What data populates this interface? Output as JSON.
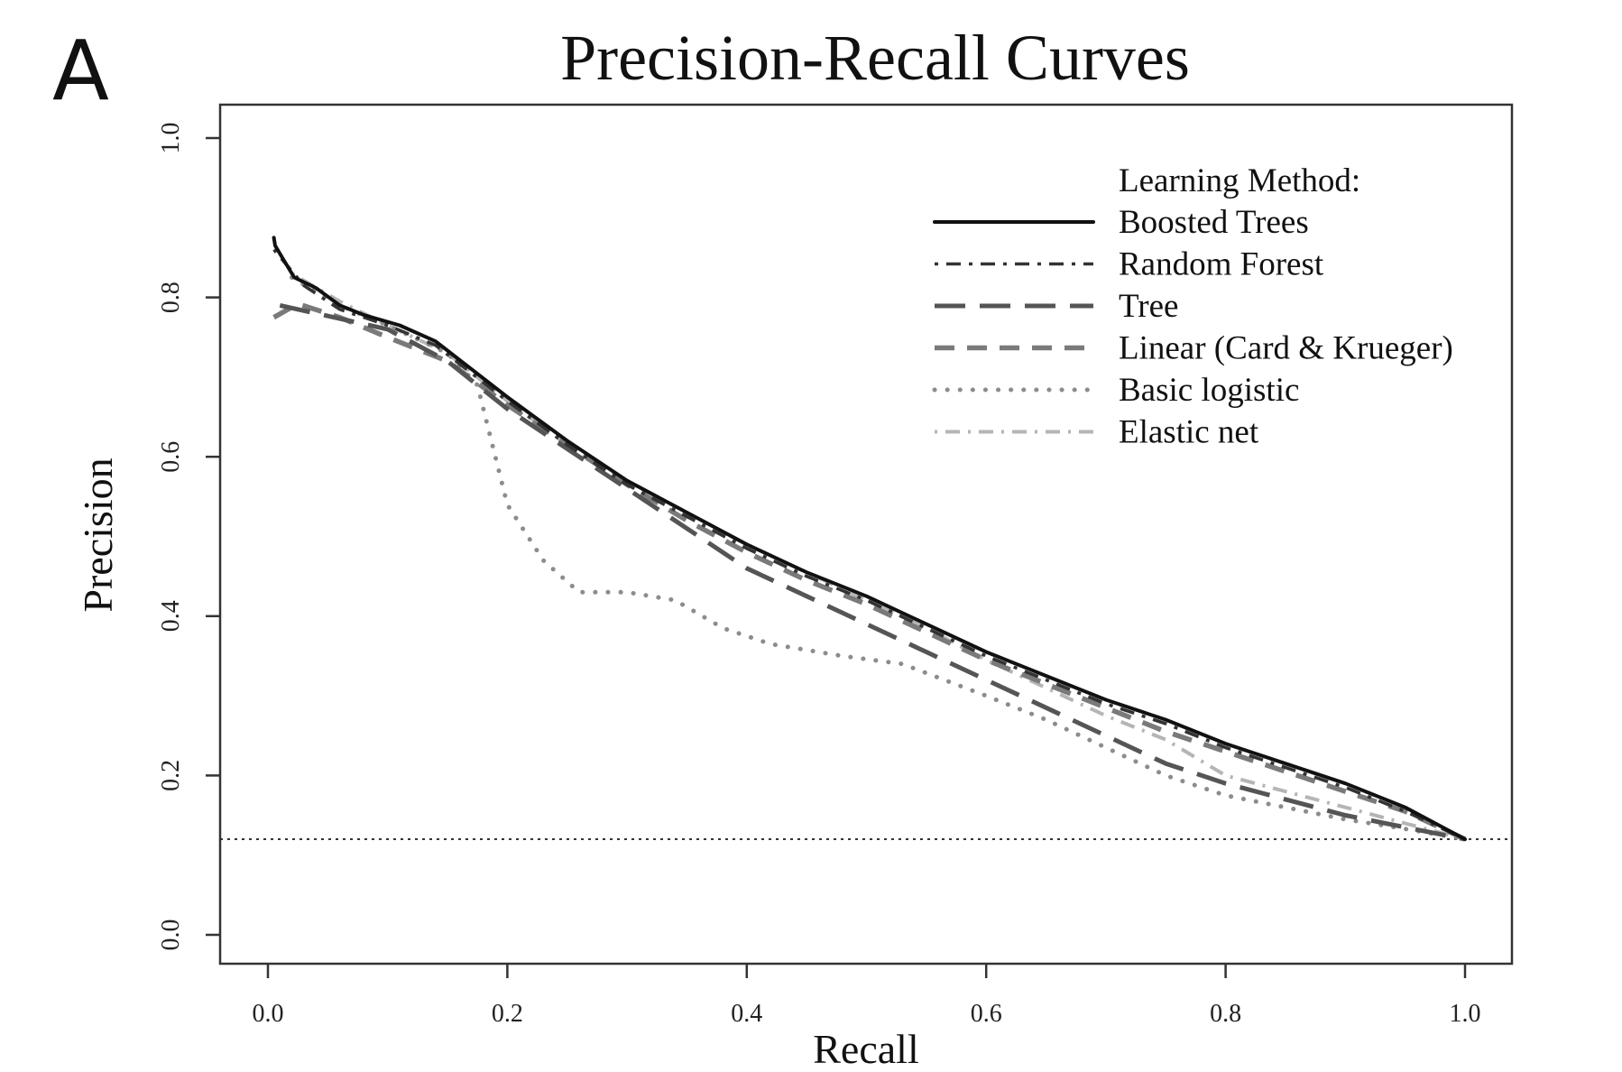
{
  "panel_label": "A",
  "chart_data": {
    "type": "line",
    "title": "Precision-Recall Curves",
    "xlabel": "Recall",
    "ylabel": "Precision",
    "xlim": [
      0.0,
      1.0
    ],
    "ylim": [
      0.0,
      1.0
    ],
    "xticks": [
      "0.0",
      "0.2",
      "0.4",
      "0.6",
      "0.8",
      "1.0"
    ],
    "yticks": [
      "0.0",
      "0.2",
      "0.4",
      "0.6",
      "0.8",
      "1.0"
    ],
    "grid": false,
    "legend_title": "Learning Method:",
    "legend_position": "top-right",
    "baseline": {
      "y": 0.12,
      "style": "dotted",
      "color": "#333333"
    },
    "series": [
      {
        "name": "Boosted Trees",
        "color": "#111111",
        "dash": "solid",
        "points": [
          [
            0.005,
            0.875
          ],
          [
            0.006,
            0.865
          ],
          [
            0.012,
            0.85
          ],
          [
            0.022,
            0.825
          ],
          [
            0.04,
            0.812
          ],
          [
            0.06,
            0.79
          ],
          [
            0.08,
            0.778
          ],
          [
            0.11,
            0.765
          ],
          [
            0.14,
            0.745
          ],
          [
            0.17,
            0.71
          ],
          [
            0.2,
            0.675
          ],
          [
            0.25,
            0.62
          ],
          [
            0.3,
            0.57
          ],
          [
            0.35,
            0.53
          ],
          [
            0.4,
            0.49
          ],
          [
            0.45,
            0.455
          ],
          [
            0.5,
            0.425
          ],
          [
            0.55,
            0.39
          ],
          [
            0.6,
            0.355
          ],
          [
            0.65,
            0.325
          ],
          [
            0.7,
            0.295
          ],
          [
            0.75,
            0.27
          ],
          [
            0.8,
            0.24
          ],
          [
            0.85,
            0.215
          ],
          [
            0.9,
            0.19
          ],
          [
            0.95,
            0.16
          ],
          [
            1.0,
            0.12
          ]
        ]
      },
      {
        "name": "Random Forest",
        "color": "#333333",
        "dash": "dot-dash",
        "points": [
          [
            0.005,
            0.86
          ],
          [
            0.03,
            0.815
          ],
          [
            0.06,
            0.785
          ],
          [
            0.1,
            0.765
          ],
          [
            0.14,
            0.74
          ],
          [
            0.17,
            0.705
          ],
          [
            0.2,
            0.67
          ],
          [
            0.25,
            0.615
          ],
          [
            0.3,
            0.565
          ],
          [
            0.35,
            0.525
          ],
          [
            0.4,
            0.485
          ],
          [
            0.45,
            0.45
          ],
          [
            0.5,
            0.42
          ],
          [
            0.55,
            0.385
          ],
          [
            0.6,
            0.35
          ],
          [
            0.65,
            0.32
          ],
          [
            0.7,
            0.29
          ],
          [
            0.75,
            0.265
          ],
          [
            0.8,
            0.235
          ],
          [
            0.85,
            0.21
          ],
          [
            0.9,
            0.185
          ],
          [
            0.95,
            0.155
          ],
          [
            1.0,
            0.12
          ]
        ]
      },
      {
        "name": "Tree",
        "color": "#555555",
        "dash": "long-dash",
        "points": [
          [
            0.01,
            0.79
          ],
          [
            0.1,
            0.76
          ],
          [
            0.15,
            0.72
          ],
          [
            0.2,
            0.66
          ],
          [
            0.25,
            0.61
          ],
          [
            0.3,
            0.56
          ],
          [
            0.35,
            0.51
          ],
          [
            0.4,
            0.46
          ],
          [
            0.45,
            0.425
          ],
          [
            0.5,
            0.39
          ],
          [
            0.55,
            0.355
          ],
          [
            0.6,
            0.32
          ],
          [
            0.65,
            0.285
          ],
          [
            0.7,
            0.25
          ],
          [
            0.75,
            0.215
          ],
          [
            0.8,
            0.19
          ],
          [
            0.85,
            0.17
          ],
          [
            0.9,
            0.15
          ],
          [
            0.95,
            0.135
          ],
          [
            1.0,
            0.12
          ]
        ]
      },
      {
        "name": "Linear (Card & Krueger)",
        "color": "#7a7a7a",
        "dash": "dash",
        "points": [
          [
            0.005,
            0.775
          ],
          [
            0.025,
            0.792
          ],
          [
            0.06,
            0.775
          ],
          [
            0.1,
            0.75
          ],
          [
            0.15,
            0.72
          ],
          [
            0.2,
            0.665
          ],
          [
            0.25,
            0.615
          ],
          [
            0.3,
            0.565
          ],
          [
            0.35,
            0.52
          ],
          [
            0.4,
            0.48
          ],
          [
            0.45,
            0.445
          ],
          [
            0.5,
            0.415
          ],
          [
            0.55,
            0.38
          ],
          [
            0.6,
            0.345
          ],
          [
            0.65,
            0.315
          ],
          [
            0.7,
            0.285
          ],
          [
            0.75,
            0.255
          ],
          [
            0.8,
            0.23
          ],
          [
            0.85,
            0.205
          ],
          [
            0.9,
            0.18
          ],
          [
            0.95,
            0.155
          ],
          [
            1.0,
            0.12
          ]
        ]
      },
      {
        "name": "Basic logistic",
        "color": "#8c8c8c",
        "dash": "dotted",
        "points": [
          [
            0.02,
            0.825
          ],
          [
            0.06,
            0.79
          ],
          [
            0.1,
            0.765
          ],
          [
            0.15,
            0.73
          ],
          [
            0.175,
            0.69
          ],
          [
            0.19,
            0.6
          ],
          [
            0.2,
            0.54
          ],
          [
            0.23,
            0.47
          ],
          [
            0.26,
            0.43
          ],
          [
            0.3,
            0.43
          ],
          [
            0.34,
            0.42
          ],
          [
            0.38,
            0.385
          ],
          [
            0.42,
            0.365
          ],
          [
            0.48,
            0.35
          ],
          [
            0.53,
            0.34
          ],
          [
            0.6,
            0.3
          ],
          [
            0.65,
            0.27
          ],
          [
            0.7,
            0.235
          ],
          [
            0.75,
            0.2
          ],
          [
            0.8,
            0.175
          ],
          [
            0.85,
            0.16
          ],
          [
            0.9,
            0.145
          ],
          [
            0.95,
            0.133
          ],
          [
            1.0,
            0.12
          ]
        ]
      },
      {
        "name": "Elastic net",
        "color": "#b5b5b5",
        "dash": "light-dot-dash",
        "points": [
          [
            0.02,
            0.83
          ],
          [
            0.06,
            0.795
          ],
          [
            0.1,
            0.765
          ],
          [
            0.15,
            0.73
          ],
          [
            0.2,
            0.67
          ],
          [
            0.25,
            0.615
          ],
          [
            0.3,
            0.57
          ],
          [
            0.35,
            0.53
          ],
          [
            0.4,
            0.49
          ],
          [
            0.45,
            0.455
          ],
          [
            0.5,
            0.42
          ],
          [
            0.55,
            0.385
          ],
          [
            0.6,
            0.345
          ],
          [
            0.65,
            0.31
          ],
          [
            0.7,
            0.275
          ],
          [
            0.75,
            0.245
          ],
          [
            0.8,
            0.2
          ],
          [
            0.85,
            0.18
          ],
          [
            0.9,
            0.16
          ],
          [
            0.95,
            0.14
          ],
          [
            1.0,
            0.12
          ]
        ]
      }
    ]
  }
}
